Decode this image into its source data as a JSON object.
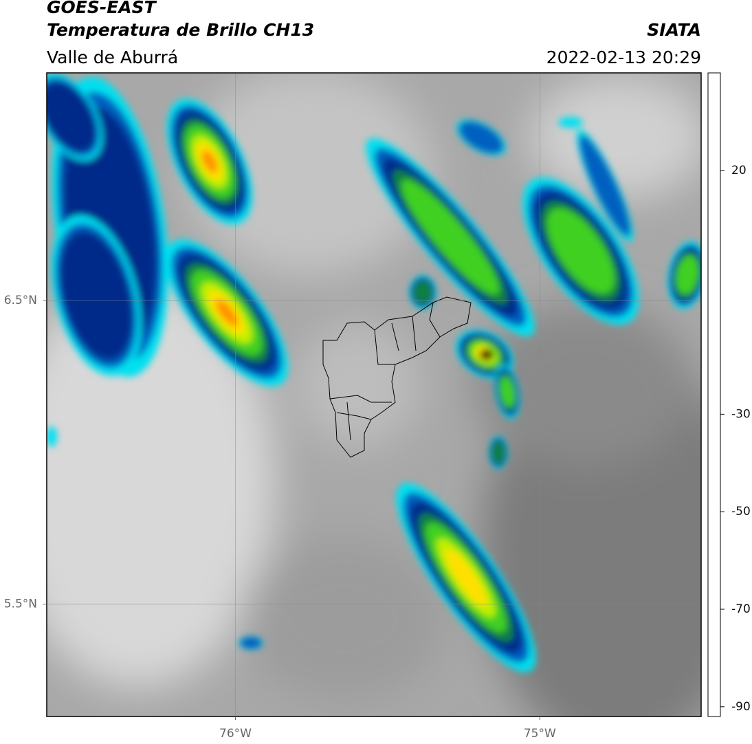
{
  "header": {
    "title": "GOES-EAST",
    "subtitle": "Temperatura de Brillo CH13",
    "region": "Valle de Aburrá",
    "source": "SIATA",
    "datetime": "2022-02-13 20:29"
  },
  "map": {
    "xlim": [
      -76.62,
      -74.47
    ],
    "ylim": [
      5.13,
      7.25
    ],
    "xticks": [
      {
        "value": -76,
        "label": "76°W"
      },
      {
        "value": -75,
        "label": "75°W"
      }
    ],
    "yticks": [
      {
        "value": 5.5,
        "label": "5.5°N"
      },
      {
        "value": 6.5,
        "label": "6.5°N"
      }
    ],
    "grid": true
  },
  "colorbar": {
    "lim": [
      -92,
      40
    ],
    "ticks": [
      -90,
      -70,
      -50,
      -30,
      20
    ],
    "colormap": [
      {
        "value": -92,
        "color": "#ffffff"
      },
      {
        "value": -89.6,
        "color": "#ffffff"
      },
      {
        "value": -89,
        "color": "#7a1a80"
      },
      {
        "value": -83,
        "color": "#e060c0"
      },
      {
        "value": -80,
        "color": "#e8c8d8"
      },
      {
        "value": -78,
        "color": "#bbbbbb"
      },
      {
        "value": -74,
        "color": "#707070"
      },
      {
        "value": -70,
        "color": "#000000"
      },
      {
        "value": -67,
        "color": "#700000"
      },
      {
        "value": -64,
        "color": "#d00000"
      },
      {
        "value": -60,
        "color": "#ff3000"
      },
      {
        "value": -55,
        "color": "#ff9000"
      },
      {
        "value": -50,
        "color": "#ffe000"
      },
      {
        "value": -45,
        "color": "#c0f000"
      },
      {
        "value": -40,
        "color": "#20d020"
      },
      {
        "value": -35,
        "color": "#108040"
      },
      {
        "value": -31,
        "color": "#003090"
      },
      {
        "value": -28,
        "color": "#0060c0"
      },
      {
        "value": -24,
        "color": "#00a0d0"
      },
      {
        "value": -20.6,
        "color": "#00e0f0"
      },
      {
        "value": -20.4,
        "color": "#f8f8f8"
      },
      {
        "value": 0,
        "color": "#c0c0c0"
      },
      {
        "value": 20,
        "color": "#808080"
      },
      {
        "value": 30,
        "color": "#404040"
      },
      {
        "value": 40,
        "color": "#000000"
      }
    ]
  }
}
